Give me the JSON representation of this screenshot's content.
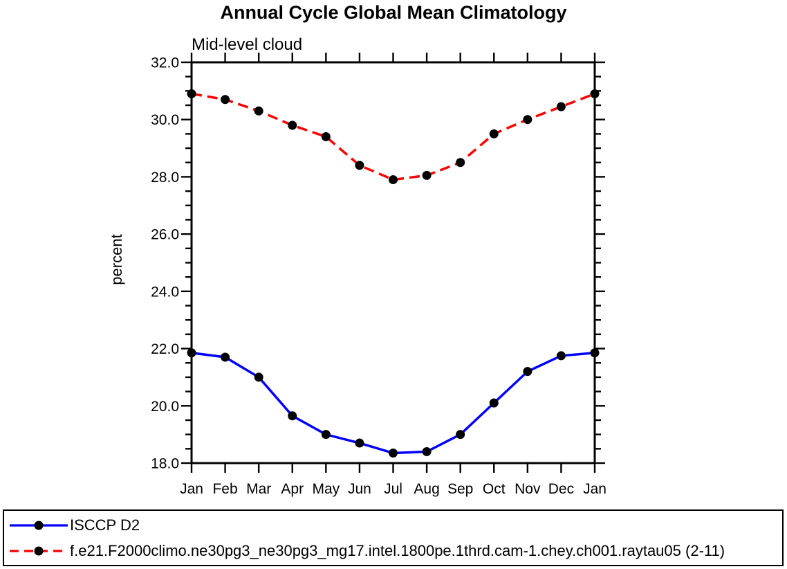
{
  "page": {
    "background_color": "#ffffff",
    "text_color": "#000000",
    "axis_color": "#000000"
  },
  "chart_data": {
    "type": "line",
    "title": "Annual Cycle Global Mean Climatology",
    "subtitle": "Mid-level cloud",
    "xlabel": "",
    "ylabel": "percent",
    "categories": [
      "Jan",
      "Feb",
      "Mar",
      "Apr",
      "May",
      "Jun",
      "Jul",
      "Aug",
      "Sep",
      "Oct",
      "Nov",
      "Dec",
      "Jan"
    ],
    "ylim": [
      18.0,
      32.0
    ],
    "ytick_major_interval": 2.0,
    "ytick_minor_interval": 0.5,
    "ytick_labels": [
      "18.0",
      "20.0",
      "22.0",
      "24.0",
      "26.0",
      "28.0",
      "30.0",
      "32.0"
    ],
    "grid": false,
    "legend_position": "framed box below chart, full width",
    "series": [
      {
        "name": "ISCCP D2",
        "color": "#0000ff",
        "line_style": "solid",
        "marker": "filled-circle",
        "marker_color": "#000000",
        "values": [
          21.85,
          21.7,
          21.0,
          19.65,
          19.0,
          18.7,
          18.35,
          18.4,
          19.0,
          20.1,
          21.2,
          21.75,
          21.85
        ]
      },
      {
        "name": "f.e21.F2000climo.ne30pg3_ne30pg3_mg17.intel.1800pe.1thrd.cam-1.chey.ch001.raytau05 (2-11)",
        "color": "#ff0000",
        "line_style": "dashed",
        "marker": "filled-circle",
        "marker_color": "#000000",
        "values": [
          30.9,
          30.7,
          30.3,
          29.8,
          29.4,
          28.4,
          27.9,
          28.05,
          28.5,
          29.5,
          30.0,
          30.45,
          30.9
        ]
      }
    ]
  }
}
